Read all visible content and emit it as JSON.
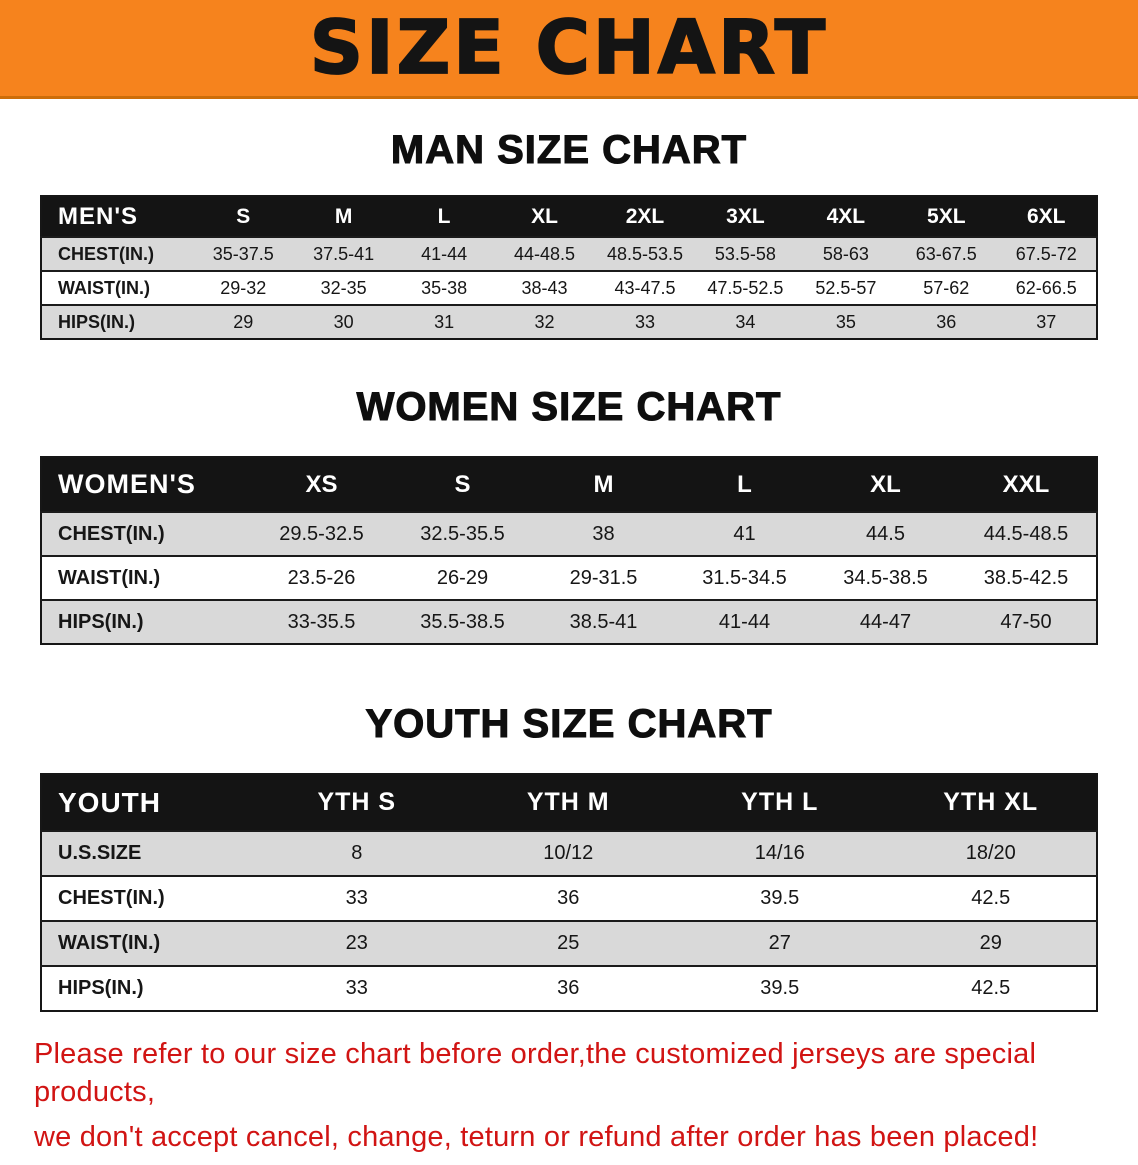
{
  "banner": {
    "title": "SIZE CHART",
    "bg_color": "#f6831d"
  },
  "sections": [
    {
      "id": "men",
      "heading": "MAN SIZE CHART",
      "table": {
        "header": [
          "MEN'S",
          "S",
          "M",
          "L",
          "XL",
          "2XL",
          "3XL",
          "4XL",
          "5XL",
          "6XL"
        ],
        "rows": [
          [
            "CHEST(IN.)",
            "35-37.5",
            "37.5-41",
            "41-44",
            "44-48.5",
            "48.5-53.5",
            "53.5-58",
            "58-63",
            "63-67.5",
            "67.5-72"
          ],
          [
            "WAIST(IN.)",
            "29-32",
            "32-35",
            "35-38",
            "38-43",
            "43-47.5",
            "47.5-52.5",
            "52.5-57",
            "57-62",
            "62-66.5"
          ],
          [
            "HIPS(IN.)",
            "29",
            "30",
            "31",
            "32",
            "33",
            "34",
            "35",
            "36",
            "37"
          ]
        ]
      }
    },
    {
      "id": "women",
      "heading": "WOMEN SIZE CHART",
      "table": {
        "header": [
          "WOMEN'S",
          "XS",
          "S",
          "M",
          "L",
          "XL",
          "XXL"
        ],
        "rows": [
          [
            "CHEST(IN.)",
            "29.5-32.5",
            "32.5-35.5",
            "38",
            "41",
            "44.5",
            "44.5-48.5"
          ],
          [
            "WAIST(IN.)",
            "23.5-26",
            "26-29",
            "29-31.5",
            "31.5-34.5",
            "34.5-38.5",
            "38.5-42.5"
          ],
          [
            "HIPS(IN.)",
            "33-35.5",
            "35.5-38.5",
            "38.5-41",
            "41-44",
            "44-47",
            "47-50"
          ]
        ]
      }
    },
    {
      "id": "youth",
      "heading": "YOUTH SIZE CHART",
      "table": {
        "header": [
          "YOUTH",
          "YTH S",
          "YTH M",
          "YTH L",
          "YTH XL"
        ],
        "rows": [
          [
            "U.S.SIZE",
            "8",
            "10/12",
            "14/16",
            "18/20"
          ],
          [
            "CHEST(IN.)",
            "33",
            "36",
            "39.5",
            "42.5"
          ],
          [
            "WAIST(IN.)",
            "23",
            "25",
            "27",
            "29"
          ],
          [
            "HIPS(IN.)",
            "33",
            "36",
            "39.5",
            "42.5"
          ]
        ]
      }
    }
  ],
  "disclaimer": {
    "line1": "Please refer to our size chart before order,the customized jerseys are special products,",
    "line2": "we don't accept cancel, change, teturn or refund after order has been placed!",
    "color": "#d11413"
  }
}
